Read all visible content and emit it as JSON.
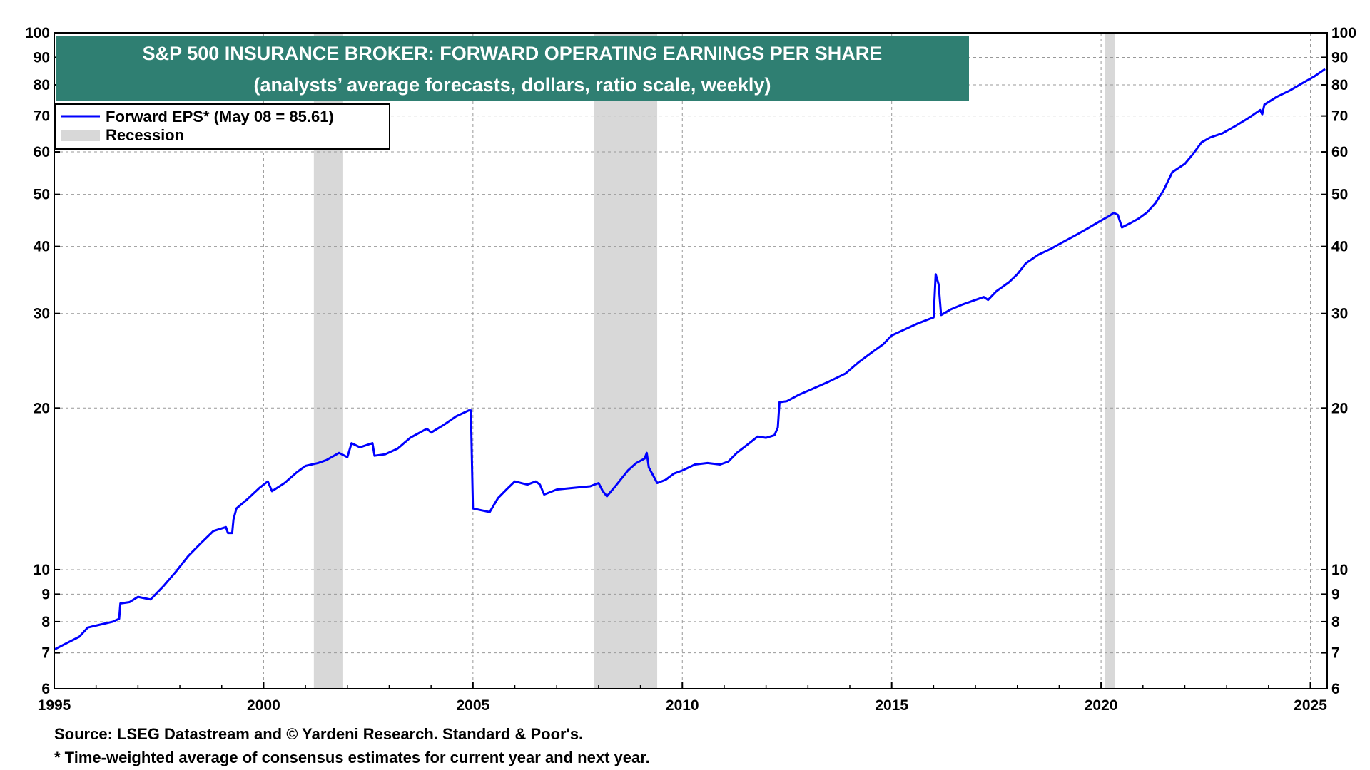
{
  "chart_data": {
    "type": "line",
    "title": "S&P 500 INSURANCE BROKER: FORWARD OPERATING EARNINGS PER SHARE",
    "subtitle": "(analysts’ average forecasts, dollars, ratio scale, weekly)",
    "xlim": [
      1995,
      2025.4
    ],
    "ylim": [
      6,
      100
    ],
    "yscale": "log",
    "grid": true,
    "legend_position": "top-left",
    "x_ticks": [
      1995,
      2000,
      2005,
      2010,
      2015,
      2020,
      2025
    ],
    "x_tick_labels": [
      "1995",
      "2000",
      "2005",
      "2010",
      "2015",
      "2020",
      "2025"
    ],
    "y_ticks": [
      6,
      7,
      8,
      9,
      10,
      20,
      30,
      40,
      50,
      60,
      70,
      80,
      90,
      100
    ],
    "y_tick_labels": [
      "6",
      "7",
      "8",
      "9",
      "10",
      "20",
      "30",
      "40",
      "50",
      "60",
      "70",
      "80",
      "90",
      "100"
    ],
    "series": [
      {
        "name": "Forward EPS* (May 08 = 85.61)",
        "color": "#0000ff",
        "points": [
          [
            1995.0,
            7.1
          ],
          [
            1995.3,
            7.3
          ],
          [
            1995.6,
            7.5
          ],
          [
            1995.8,
            7.8
          ],
          [
            1996.1,
            7.9
          ],
          [
            1996.4,
            8.0
          ],
          [
            1996.55,
            8.1
          ],
          [
            1996.58,
            8.65
          ],
          [
            1996.8,
            8.7
          ],
          [
            1997.0,
            8.9
          ],
          [
            1997.3,
            8.8
          ],
          [
            1997.6,
            9.3
          ],
          [
            1997.9,
            9.9
          ],
          [
            1998.2,
            10.6
          ],
          [
            1998.5,
            11.2
          ],
          [
            1998.8,
            11.8
          ],
          [
            1999.1,
            12.0
          ],
          [
            1999.15,
            11.7
          ],
          [
            1999.25,
            11.7
          ],
          [
            1999.28,
            12.4
          ],
          [
            1999.35,
            13.0
          ],
          [
            1999.6,
            13.5
          ],
          [
            1999.9,
            14.2
          ],
          [
            2000.1,
            14.6
          ],
          [
            2000.2,
            14.0
          ],
          [
            2000.5,
            14.5
          ],
          [
            2000.8,
            15.2
          ],
          [
            2001.0,
            15.6
          ],
          [
            2001.3,
            15.8
          ],
          [
            2001.5,
            16.0
          ],
          [
            2001.8,
            16.5
          ],
          [
            2002.0,
            16.2
          ],
          [
            2002.1,
            17.2
          ],
          [
            2002.3,
            16.9
          ],
          [
            2002.6,
            17.2
          ],
          [
            2002.65,
            16.3
          ],
          [
            2002.9,
            16.4
          ],
          [
            2003.2,
            16.8
          ],
          [
            2003.5,
            17.6
          ],
          [
            2003.9,
            18.3
          ],
          [
            2004.0,
            18.0
          ],
          [
            2004.3,
            18.6
          ],
          [
            2004.6,
            19.3
          ],
          [
            2004.9,
            19.8
          ],
          [
            2004.95,
            19.8
          ],
          [
            2005.0,
            13.0
          ],
          [
            2005.2,
            12.9
          ],
          [
            2005.4,
            12.8
          ],
          [
            2005.6,
            13.6
          ],
          [
            2005.8,
            14.1
          ],
          [
            2006.0,
            14.6
          ],
          [
            2006.3,
            14.4
          ],
          [
            2006.5,
            14.6
          ],
          [
            2006.6,
            14.4
          ],
          [
            2006.7,
            13.8
          ],
          [
            2007.0,
            14.1
          ],
          [
            2007.4,
            14.2
          ],
          [
            2007.8,
            14.3
          ],
          [
            2008.0,
            14.5
          ],
          [
            2008.1,
            14.0
          ],
          [
            2008.2,
            13.7
          ],
          [
            2008.4,
            14.3
          ],
          [
            2008.7,
            15.3
          ],
          [
            2008.9,
            15.8
          ],
          [
            2009.1,
            16.1
          ],
          [
            2009.15,
            16.5
          ],
          [
            2009.2,
            15.5
          ],
          [
            2009.4,
            14.5
          ],
          [
            2009.6,
            14.7
          ],
          [
            2009.8,
            15.1
          ],
          [
            2010.0,
            15.3
          ],
          [
            2010.3,
            15.7
          ],
          [
            2010.6,
            15.8
          ],
          [
            2010.9,
            15.7
          ],
          [
            2011.1,
            15.9
          ],
          [
            2011.3,
            16.5
          ],
          [
            2011.6,
            17.2
          ],
          [
            2011.8,
            17.7
          ],
          [
            2012.0,
            17.6
          ],
          [
            2012.2,
            17.8
          ],
          [
            2012.28,
            18.4
          ],
          [
            2012.32,
            20.5
          ],
          [
            2012.5,
            20.6
          ],
          [
            2012.8,
            21.2
          ],
          [
            2013.1,
            21.7
          ],
          [
            2013.5,
            22.4
          ],
          [
            2013.9,
            23.2
          ],
          [
            2014.2,
            24.3
          ],
          [
            2014.5,
            25.3
          ],
          [
            2014.8,
            26.3
          ],
          [
            2015.0,
            27.3
          ],
          [
            2015.3,
            28.0
          ],
          [
            2015.6,
            28.7
          ],
          [
            2015.9,
            29.3
          ],
          [
            2016.0,
            29.5
          ],
          [
            2016.05,
            35.5
          ],
          [
            2016.12,
            34.0
          ],
          [
            2016.18,
            29.8
          ],
          [
            2016.4,
            30.5
          ],
          [
            2016.7,
            31.2
          ],
          [
            2017.0,
            31.8
          ],
          [
            2017.2,
            32.2
          ],
          [
            2017.3,
            31.8
          ],
          [
            2017.5,
            33.0
          ],
          [
            2017.8,
            34.3
          ],
          [
            2018.0,
            35.5
          ],
          [
            2018.2,
            37.2
          ],
          [
            2018.5,
            38.6
          ],
          [
            2018.8,
            39.6
          ],
          [
            2019.1,
            40.8
          ],
          [
            2019.4,
            42.0
          ],
          [
            2019.7,
            43.3
          ],
          [
            2020.0,
            44.7
          ],
          [
            2020.2,
            45.6
          ],
          [
            2020.3,
            46.2
          ],
          [
            2020.4,
            45.8
          ],
          [
            2020.5,
            43.4
          ],
          [
            2020.7,
            44.2
          ],
          [
            2020.9,
            45.1
          ],
          [
            2021.1,
            46.3
          ],
          [
            2021.3,
            48.2
          ],
          [
            2021.5,
            51.0
          ],
          [
            2021.7,
            55.0
          ],
          [
            2022.0,
            57.0
          ],
          [
            2022.2,
            59.5
          ],
          [
            2022.4,
            62.5
          ],
          [
            2022.6,
            63.8
          ],
          [
            2022.9,
            65.0
          ],
          [
            2023.2,
            67.0
          ],
          [
            2023.5,
            69.2
          ],
          [
            2023.8,
            71.8
          ],
          [
            2023.85,
            70.5
          ],
          [
            2023.9,
            73.5
          ],
          [
            2024.2,
            76.0
          ],
          [
            2024.5,
            78.0
          ],
          [
            2024.8,
            80.5
          ],
          [
            2025.1,
            83.0
          ],
          [
            2025.35,
            85.61
          ]
        ]
      }
    ],
    "recessions": [
      [
        2001.2,
        2001.9
      ],
      [
        2007.9,
        2009.4
      ],
      [
        2020.1,
        2020.33
      ]
    ],
    "legend": [
      {
        "label": "Forward EPS* (May 08 = 85.61)",
        "kind": "line",
        "color": "#0000ff"
      },
      {
        "label": "Recession",
        "kind": "band",
        "color": "#d8d8d8"
      }
    ],
    "title_box_color": "#2f7f72",
    "source": "Source: LSEG Datastream and © Yardeni Research. Standard & Poor's.",
    "footnote": "* Time-weighted average of consensus estimates for current year and next year."
  }
}
